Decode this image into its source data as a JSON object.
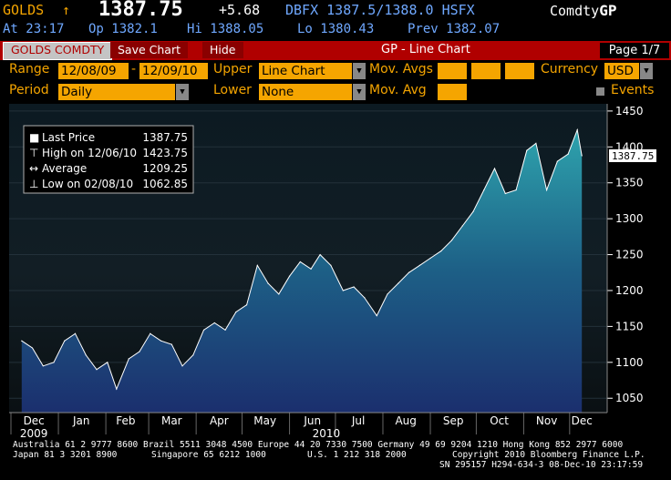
{
  "header": {
    "ticker": "GOLDS",
    "arrow": "↑",
    "price": "1387.75",
    "change": "+5.68",
    "source": "DBFX 1387.5/1388.0 HSFX",
    "brand_prefix": "Comdty",
    "brand_suffix": "GP",
    "time": "At 23:17",
    "open": "Op 1382.1",
    "high": "Hi 1388.05",
    "low": "Lo 1380.43",
    "prev": "Prev 1382.07"
  },
  "toolbar": {
    "security": "GOLDS COMDTY",
    "save": "Save Chart",
    "hide": "Hide",
    "title": "GP - Line Chart",
    "page": "Page 1/7"
  },
  "controls": {
    "range_label": "Range",
    "range_start": "12/08/09",
    "range_sep": "-",
    "range_end": "12/09/10",
    "upper_label": "Upper",
    "upper_value": "Line Chart",
    "mov_avgs_label": "Mov. Avgs",
    "currency_label": "Currency",
    "currency_value": "USD",
    "period_label": "Period",
    "period_value": "Daily",
    "lower_label": "Lower",
    "lower_value": "None",
    "mov_avg_label": "Mov. Avg",
    "events_label": "Events"
  },
  "colors": {
    "accent": "#f5a500",
    "bar": "#b00000",
    "line": "#ffffff"
  },
  "chart_data": {
    "type": "area",
    "ylim": [
      1030,
      1460
    ],
    "yticks": [
      1050,
      1100,
      1150,
      1200,
      1250,
      1300,
      1350,
      1400,
      1450
    ],
    "months": [
      "Dec",
      "Jan",
      "Feb",
      "Mar",
      "Apr",
      "May",
      "Jun",
      "Jul",
      "Aug",
      "Sep",
      "Oct",
      "Nov",
      "Dec"
    ],
    "years": [
      "2009",
      "2010"
    ],
    "last_label": "1387.75",
    "legend": [
      {
        "label": "Last Price",
        "value": "1387.75",
        "icon": "square-icon"
      },
      {
        "label": "High on 12/06/10",
        "value": "1423.75",
        "icon": "high-icon"
      },
      {
        "label": "Average",
        "value": "1209.25",
        "icon": "average-icon"
      },
      {
        "label": "Low on 02/08/10",
        "value": "1062.85",
        "icon": "low-icon"
      }
    ],
    "x": [
      "2009-12-08",
      "2009-12-15",
      "2009-12-22",
      "2009-12-29",
      "2010-01-05",
      "2010-01-12",
      "2010-01-19",
      "2010-01-26",
      "2010-02-02",
      "2010-02-08",
      "2010-02-16",
      "2010-02-23",
      "2010-03-02",
      "2010-03-09",
      "2010-03-16",
      "2010-03-23",
      "2010-03-30",
      "2010-04-06",
      "2010-04-13",
      "2010-04-20",
      "2010-04-27",
      "2010-05-04",
      "2010-05-11",
      "2010-05-18",
      "2010-05-25",
      "2010-06-01",
      "2010-06-08",
      "2010-06-15",
      "2010-06-21",
      "2010-06-28",
      "2010-07-06",
      "2010-07-13",
      "2010-07-20",
      "2010-07-28",
      "2010-08-04",
      "2010-08-11",
      "2010-08-18",
      "2010-08-25",
      "2010-09-01",
      "2010-09-08",
      "2010-09-15",
      "2010-09-22",
      "2010-09-29",
      "2010-10-06",
      "2010-10-13",
      "2010-10-20",
      "2010-10-27",
      "2010-11-03",
      "2010-11-09",
      "2010-11-16",
      "2010-11-23",
      "2010-11-30",
      "2010-12-06",
      "2010-12-09"
    ],
    "values": [
      1130,
      1120,
      1095,
      1100,
      1130,
      1140,
      1110,
      1090,
      1100,
      1062.85,
      1105,
      1115,
      1140,
      1130,
      1125,
      1095,
      1110,
      1145,
      1155,
      1145,
      1170,
      1180,
      1235,
      1210,
      1195,
      1220,
      1240,
      1230,
      1250,
      1235,
      1200,
      1205,
      1190,
      1165,
      1195,
      1210,
      1225,
      1235,
      1245,
      1255,
      1270,
      1290,
      1310,
      1340,
      1370,
      1335,
      1340,
      1395,
      1405,
      1340,
      1380,
      1390,
      1423.75,
      1387.75
    ]
  },
  "footer": {
    "line1": "Australia 61 2 9777 8600 Brazil 5511 3048 4500 Europe 44 20 7330 7500 Germany 49 69 9204 1210 Hong Kong 852 2977 6000",
    "line2a": "Japan 81 3 3201 8900",
    "line2b": "Singapore 65 6212 1000",
    "line2c": "U.S. 1 212 318 2000",
    "line2d": "Copyright 2010 Bloomberg Finance L.P.",
    "line3": "SN 295157 H294-634-3 08-Dec-10 23:17:59"
  }
}
